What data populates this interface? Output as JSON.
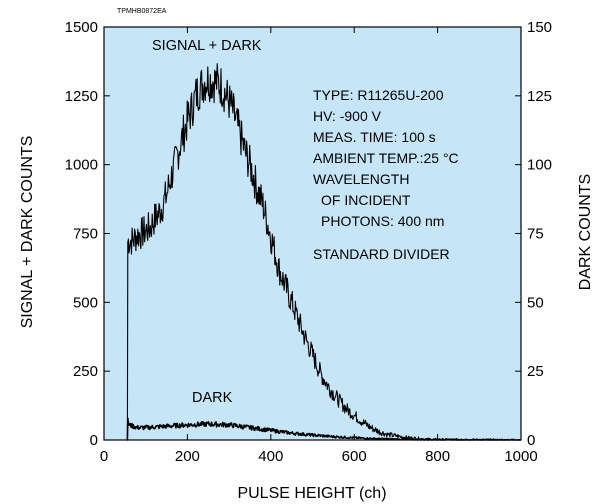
{
  "chart_data": {
    "type": "line",
    "figure_code": "TPMHB0872EA",
    "xlabel": "PULSE HEIGHT (ch)",
    "ylabel_left": "SIGNAL + DARK COUNTS",
    "ylabel_right": "DARK COUNTS",
    "xlim": [
      0,
      1000
    ],
    "ylim_left": [
      0,
      1500
    ],
    "ylim_right": [
      0,
      150
    ],
    "x_ticks": [
      0,
      200,
      400,
      600,
      800,
      1000
    ],
    "y_ticks_left": [
      0,
      250,
      500,
      750,
      1000,
      1250,
      1500
    ],
    "y_ticks_right": [
      0,
      25,
      50,
      75,
      100,
      125,
      150
    ],
    "grid": false,
    "background_color": "#c6e6f8",
    "line_color": "#000000",
    "notes": [
      "TYPE: R11265U-200",
      "HV: -900 V",
      "MEAS. TIME: 100 s",
      "AMBIENT TEMP.:25 °C",
      "WAVELENGTH",
      "OF INCIDENT",
      "PHOTONS: 400 nm",
      "STANDARD DIVIDER"
    ],
    "series": [
      {
        "name": "SIGNAL + DARK",
        "axis": "left",
        "x": [
          55,
          56,
          57,
          60,
          70,
          80,
          90,
          100,
          110,
          120,
          130,
          140,
          150,
          160,
          170,
          180,
          190,
          200,
          210,
          220,
          230,
          240,
          250,
          260,
          270,
          280,
          290,
          300,
          310,
          320,
          330,
          340,
          350,
          360,
          370,
          380,
          390,
          400,
          420,
          440,
          460,
          480,
          500,
          520,
          540,
          560,
          580,
          600,
          620,
          640,
          660,
          680,
          700,
          720,
          740,
          760,
          780,
          800,
          850,
          900,
          950,
          1000
        ],
        "y": [
          0,
          0,
          720,
          725,
          725,
          745,
          750,
          760,
          770,
          800,
          820,
          850,
          890,
          950,
          1000,
          1060,
          1110,
          1160,
          1200,
          1250,
          1280,
          1300,
          1310,
          1305,
          1300,
          1290,
          1260,
          1230,
          1190,
          1140,
          1090,
          1040,
          1000,
          950,
          900,
          860,
          800,
          740,
          620,
          540,
          460,
          380,
          310,
          240,
          190,
          150,
          115,
          90,
          65,
          45,
          30,
          20,
          15,
          10,
          7,
          5,
          3,
          2,
          1,
          1,
          0,
          0
        ]
      },
      {
        "name": "DARK",
        "axis": "left",
        "x": [
          55,
          56,
          57,
          60,
          80,
          100,
          150,
          200,
          250,
          300,
          350,
          400,
          450,
          500,
          550,
          600,
          650,
          700,
          750,
          800,
          850,
          900,
          950,
          1000
        ],
        "y": [
          0,
          0,
          70,
          55,
          45,
          45,
          50,
          55,
          58,
          55,
          45,
          35,
          25,
          18,
          12,
          8,
          5,
          3,
          2,
          1,
          1,
          0,
          0,
          0
        ]
      }
    ]
  }
}
